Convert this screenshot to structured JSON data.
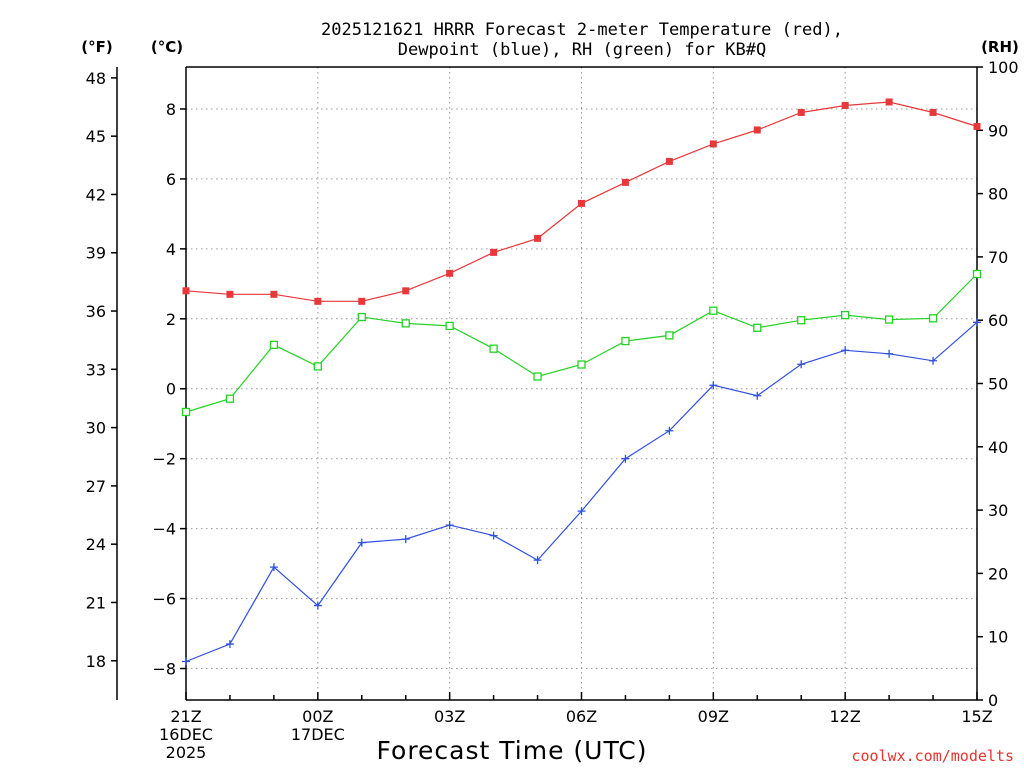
{
  "chart_data": {
    "type": "line",
    "title_line1": "2025121621 HRRR Forecast 2-meter Temperature (red),",
    "title_line2": "Dewpoint (blue), RH (green) for KB#Q",
    "xlabel": "Forecast Time (UTC)",
    "credit": "coolwx.com/modelts",
    "units": {
      "f": "(°F)",
      "c": "(°C)",
      "rh": "(RH)"
    },
    "x": [
      "21Z",
      "22Z",
      "23Z",
      "00Z",
      "01Z",
      "02Z",
      "03Z",
      "04Z",
      "05Z",
      "06Z",
      "07Z",
      "08Z",
      "09Z",
      "10Z",
      "11Z",
      "12Z",
      "13Z",
      "14Z",
      "15Z"
    ],
    "x_tick_labels": [
      {
        "index": 0,
        "lines": [
          "21Z",
          "16DEC",
          "2025"
        ]
      },
      {
        "index": 3,
        "lines": [
          "00Z",
          "17DEC"
        ]
      },
      {
        "index": 6,
        "lines": [
          "03Z"
        ]
      },
      {
        "index": 9,
        "lines": [
          "06Z"
        ]
      },
      {
        "index": 12,
        "lines": [
          "09Z"
        ]
      },
      {
        "index": 15,
        "lines": [
          "12Z"
        ]
      },
      {
        "index": 18,
        "lines": [
          "15Z"
        ]
      }
    ],
    "y_celsius": {
      "range": [
        -8.9,
        9.2
      ],
      "ticks": [
        -8,
        -6,
        -4,
        -2,
        0,
        2,
        4,
        6,
        8
      ],
      "tick_labels": [
        "−8",
        "−6",
        "−4",
        "−2",
        "0",
        "2",
        "4",
        "6",
        "8"
      ]
    },
    "y_fahrenheit": {
      "ticks": [
        18,
        21,
        24,
        27,
        30,
        33,
        36,
        39,
        42,
        45,
        48
      ],
      "tick_labels": [
        "18",
        "21",
        "24",
        "27",
        "30",
        "33",
        "36",
        "39",
        "42",
        "45",
        "48"
      ]
    },
    "y_rh": {
      "range": [
        0,
        100
      ],
      "ticks": [
        0,
        10,
        20,
        30,
        40,
        50,
        60,
        70,
        80,
        90,
        100
      ],
      "tick_labels": [
        "0",
        "10",
        "20",
        "30",
        "40",
        "50",
        "60",
        "70",
        "80",
        "90",
        "100"
      ]
    },
    "grid": true,
    "series": [
      {
        "name": "2-meter Temperature",
        "axis": "celsius",
        "color": "#e8383a",
        "marker": "filled-square",
        "values": [
          2.8,
          2.7,
          2.7,
          2.5,
          2.5,
          2.8,
          3.3,
          3.9,
          4.3,
          5.3,
          5.9,
          6.5,
          7.0,
          7.4,
          7.9,
          8.1,
          8.2,
          7.9,
          7.5
        ]
      },
      {
        "name": "Dewpoint",
        "axis": "celsius",
        "color": "#3050e0",
        "marker": "plus",
        "values": [
          -7.8,
          -7.3,
          -5.1,
          -6.2,
          -4.4,
          -4.3,
          -3.9,
          -4.2,
          -4.9,
          -3.5,
          -2.0,
          -1.2,
          0.1,
          -0.2,
          0.7,
          1.1,
          1.0,
          0.8,
          1.9
        ]
      },
      {
        "name": "RH",
        "axis": "rh",
        "color": "#22d322",
        "marker": "open-square",
        "values": [
          45.5,
          47.6,
          56.1,
          52.7,
          60.5,
          59.5,
          59.1,
          55.5,
          51.1,
          53.0,
          56.7,
          57.6,
          61.5,
          58.8,
          60.0,
          60.8,
          60.1,
          60.3,
          67.3
        ]
      }
    ]
  }
}
